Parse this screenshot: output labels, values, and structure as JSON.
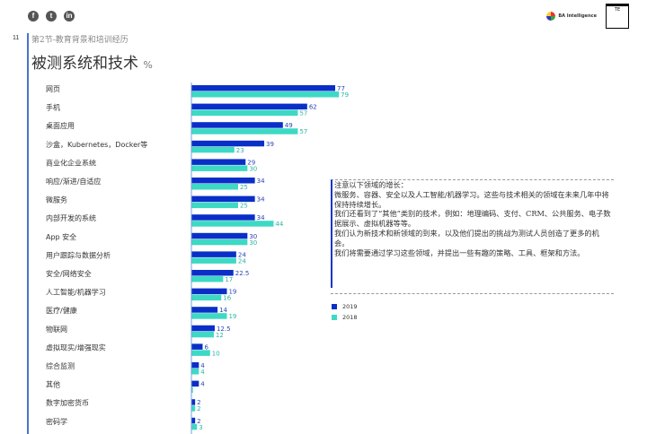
{
  "header": {
    "social_icons": [
      "facebook-icon",
      "twitter-icon",
      "linkedin-icon"
    ],
    "logos": [
      "BA Intelligence",
      "TE"
    ],
    "page_number": "11",
    "section": "第2节-教育背景和培训经历",
    "title": "被测系统和技术",
    "unit": "%"
  },
  "note": {
    "lines": [
      "注意以下领域的增长：",
      "微服务、容器、安全以及人工智能/机器学习。这些与技术相关的领域在未来几年中将保持持续增长。",
      "我们还看到了“其他”类别的技术，例如：地理编码、支付、CRM、公共服务、电子数据展示、虚拟机器等等。",
      "我们认为新技术和新领域的到来，以及他们提出的挑战为测试人员创造了更多的机会。",
      "我们将需要通过学习这些领域，并提出一些有趣的策略、工具、框架和方法。"
    ]
  },
  "colors": {
    "s2019": "#0a2fc8",
    "s2018": "#3dd9c5",
    "axis": "#7aa0d8"
  },
  "chart_data": {
    "type": "bar",
    "orientation": "horizontal",
    "categories": [
      "网页",
      "手机",
      "桌面应用",
      "沙盒，Kubernetes，Docker等",
      "商业化企业系统",
      "响应/渐进/自适应",
      "微服务",
      "内部开发的系统",
      "App 安全",
      "用户跟踪与数据分析",
      "安全/网络安全",
      "人工智能/机器学习",
      "医疗/健康",
      "物联网",
      "虚拟现实/增强现实",
      "综合监测",
      "其他",
      "数字加密货币",
      "密码学"
    ],
    "series": [
      {
        "name": "2019",
        "values": [
          77,
          62,
          49,
          39,
          29,
          34,
          34,
          34,
          30,
          24,
          22.5,
          19,
          14,
          12.5,
          6,
          4,
          4,
          2,
          2
        ]
      },
      {
        "name": "2018",
        "values": [
          79,
          57,
          57,
          23,
          30,
          25,
          25,
          44,
          30,
          24,
          17,
          16,
          19,
          12,
          10,
          4,
          null,
          2,
          3
        ]
      }
    ],
    "legend_placement": "right",
    "grid": false
  }
}
